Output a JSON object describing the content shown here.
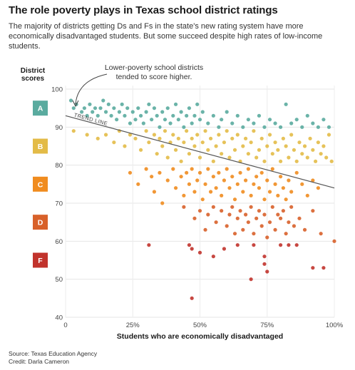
{
  "title": "The role poverty plays in Texas school district ratings",
  "subtitle": "The majority of districts getting Ds and Fs in the state's new rating system have more economically disadvantaged students. But some succeed despite high rates of low-income students.",
  "source_line": "Source: Texas Education Agency",
  "credit_line": "Credit: Darla Cameron",
  "annotation": "Lower-poverty school districts tended to score higher.",
  "trend_label": "TREND LINE",
  "grade_colors": {
    "A": "#5aab9f",
    "B": "#e3bb47",
    "C": "#f08c1f",
    "D": "#d8612a",
    "F": "#c1332c"
  },
  "chart_data": {
    "type": "scatter",
    "xlabel": "Students who are economically disadvantaged",
    "ylabel": "District scores",
    "xlim": [
      0,
      100
    ],
    "ylim": [
      40,
      100
    ],
    "x_ticks": [
      "0",
      "25%",
      "50%",
      "75%",
      "100%"
    ],
    "y_ticks": [
      "40",
      "50",
      "60",
      "70",
      "80",
      "90",
      "100"
    ],
    "grades": [
      {
        "label": "A",
        "range": [
          90,
          100
        ]
      },
      {
        "label": "B",
        "range": [
          80,
          90
        ]
      },
      {
        "label": "C",
        "range": [
          70,
          80
        ]
      },
      {
        "label": "D",
        "range": [
          60,
          70
        ]
      },
      {
        "label": "F",
        "range": [
          0,
          60
        ]
      }
    ],
    "trend_line": {
      "x": [
        0,
        100
      ],
      "y": [
        93,
        74
      ]
    },
    "points": [
      [
        2,
        97
      ],
      [
        3,
        95
      ],
      [
        4,
        96
      ],
      [
        6,
        94
      ],
      [
        7,
        95
      ],
      [
        8,
        93
      ],
      [
        9,
        96
      ],
      [
        10,
        94
      ],
      [
        11,
        95
      ],
      [
        12,
        93
      ],
      [
        13,
        95
      ],
      [
        14,
        97
      ],
      [
        15,
        94
      ],
      [
        16,
        96
      ],
      [
        17,
        93
      ],
      [
        18,
        95
      ],
      [
        19,
        92
      ],
      [
        20,
        94
      ],
      [
        21,
        96
      ],
      [
        22,
        93
      ],
      [
        23,
        95
      ],
      [
        24,
        91
      ],
      [
        25,
        94
      ],
      [
        26,
        92
      ],
      [
        27,
        95
      ],
      [
        28,
        93
      ],
      [
        29,
        91
      ],
      [
        30,
        94
      ],
      [
        31,
        96
      ],
      [
        32,
        92
      ],
      [
        33,
        95
      ],
      [
        34,
        93
      ],
      [
        35,
        90
      ],
      [
        36,
        94
      ],
      [
        37,
        92
      ],
      [
        38,
        95
      ],
      [
        39,
        91
      ],
      [
        40,
        93
      ],
      [
        41,
        96
      ],
      [
        42,
        92
      ],
      [
        43,
        94
      ],
      [
        44,
        90
      ],
      [
        45,
        93
      ],
      [
        46,
        95
      ],
      [
        47,
        91
      ],
      [
        48,
        93
      ],
      [
        49,
        96
      ],
      [
        50,
        92
      ],
      [
        51,
        94
      ],
      [
        53,
        91
      ],
      [
        55,
        93
      ],
      [
        57,
        90
      ],
      [
        58,
        92
      ],
      [
        60,
        94
      ],
      [
        62,
        91
      ],
      [
        64,
        93
      ],
      [
        66,
        90
      ],
      [
        68,
        92
      ],
      [
        70,
        91
      ],
      [
        72,
        93
      ],
      [
        74,
        90
      ],
      [
        76,
        92
      ],
      [
        78,
        91
      ],
      [
        80,
        90
      ],
      [
        82,
        96
      ],
      [
        84,
        91
      ],
      [
        86,
        92
      ],
      [
        88,
        90
      ],
      [
        90,
        93
      ],
      [
        92,
        91
      ],
      [
        94,
        90
      ],
      [
        96,
        92
      ],
      [
        98,
        90
      ],
      [
        3,
        89
      ],
      [
        8,
        88
      ],
      [
        12,
        87
      ],
      [
        15,
        88
      ],
      [
        18,
        86
      ],
      [
        20,
        89
      ],
      [
        22,
        85
      ],
      [
        24,
        88
      ],
      [
        26,
        87
      ],
      [
        28,
        84
      ],
      [
        30,
        89
      ],
      [
        31,
        86
      ],
      [
        33,
        88
      ],
      [
        34,
        83
      ],
      [
        35,
        87
      ],
      [
        36,
        85
      ],
      [
        37,
        89
      ],
      [
        38,
        82
      ],
      [
        39,
        86
      ],
      [
        40,
        88
      ],
      [
        41,
        84
      ],
      [
        42,
        87
      ],
      [
        43,
        81
      ],
      [
        44,
        86
      ],
      [
        45,
        89
      ],
      [
        46,
        83
      ],
      [
        47,
        87
      ],
      [
        48,
        85
      ],
      [
        49,
        88
      ],
      [
        50,
        82
      ],
      [
        51,
        86
      ],
      [
        52,
        89
      ],
      [
        53,
        84
      ],
      [
        54,
        87
      ],
      [
        55,
        81
      ],
      [
        56,
        85
      ],
      [
        57,
        88
      ],
      [
        58,
        83
      ],
      [
        59,
        86
      ],
      [
        60,
        89
      ],
      [
        61,
        82
      ],
      [
        62,
        87
      ],
      [
        63,
        84
      ],
      [
        64,
        88
      ],
      [
        65,
        81
      ],
      [
        66,
        85
      ],
      [
        67,
        87
      ],
      [
        68,
        83
      ],
      [
        69,
        86
      ],
      [
        70,
        89
      ],
      [
        71,
        82
      ],
      [
        72,
        84
      ],
      [
        73,
        87
      ],
      [
        74,
        81
      ],
      [
        75,
        85
      ],
      [
        76,
        88
      ],
      [
        77,
        83
      ],
      [
        78,
        86
      ],
      [
        79,
        84
      ],
      [
        80,
        81
      ],
      [
        81,
        87
      ],
      [
        82,
        85
      ],
      [
        83,
        82
      ],
      [
        84,
        88
      ],
      [
        85,
        84
      ],
      [
        86,
        81
      ],
      [
        87,
        86
      ],
      [
        88,
        83
      ],
      [
        89,
        85
      ],
      [
        90,
        82
      ],
      [
        91,
        87
      ],
      [
        92,
        84
      ],
      [
        93,
        81
      ],
      [
        94,
        86
      ],
      [
        95,
        83
      ],
      [
        96,
        85
      ],
      [
        97,
        82
      ],
      [
        98,
        88
      ],
      [
        99,
        81
      ],
      [
        24,
        78
      ],
      [
        27,
        75
      ],
      [
        30,
        79
      ],
      [
        32,
        77
      ],
      [
        33,
        73
      ],
      [
        35,
        78
      ],
      [
        36,
        70
      ],
      [
        38,
        76
      ],
      [
        40,
        79
      ],
      [
        41,
        74
      ],
      [
        43,
        77
      ],
      [
        44,
        72
      ],
      [
        45,
        78
      ],
      [
        46,
        75
      ],
      [
        47,
        79
      ],
      [
        48,
        73
      ],
      [
        49,
        76
      ],
      [
        50,
        78
      ],
      [
        51,
        71
      ],
      [
        52,
        75
      ],
      [
        53,
        79
      ],
      [
        54,
        73
      ],
      [
        55,
        77
      ],
      [
        56,
        74
      ],
      [
        57,
        78
      ],
      [
        58,
        72
      ],
      [
        59,
        76
      ],
      [
        60,
        79
      ],
      [
        61,
        74
      ],
      [
        62,
        77
      ],
      [
        63,
        71
      ],
      [
        64,
        75
      ],
      [
        65,
        78
      ],
      [
        66,
        73
      ],
      [
        67,
        76
      ],
      [
        68,
        79
      ],
      [
        69,
        72
      ],
      [
        70,
        75
      ],
      [
        71,
        77
      ],
      [
        72,
        74
      ],
      [
        73,
        78
      ],
      [
        74,
        71
      ],
      [
        75,
        76
      ],
      [
        76,
        73
      ],
      [
        77,
        79
      ],
      [
        78,
        75
      ],
      [
        79,
        72
      ],
      [
        80,
        77
      ],
      [
        81,
        74
      ],
      [
        82,
        71
      ],
      [
        83,
        76
      ],
      [
        84,
        73
      ],
      [
        86,
        78
      ],
      [
        88,
        75
      ],
      [
        90,
        72
      ],
      [
        92,
        76
      ],
      [
        94,
        74
      ],
      [
        44,
        69
      ],
      [
        48,
        66
      ],
      [
        50,
        68
      ],
      [
        52,
        63
      ],
      [
        53,
        67
      ],
      [
        55,
        69
      ],
      [
        56,
        65
      ],
      [
        58,
        68
      ],
      [
        60,
        64
      ],
      [
        61,
        67
      ],
      [
        62,
        69
      ],
      [
        63,
        62
      ],
      [
        64,
        66
      ],
      [
        65,
        68
      ],
      [
        66,
        63
      ],
      [
        67,
        67
      ],
      [
        68,
        65
      ],
      [
        69,
        69
      ],
      [
        70,
        62
      ],
      [
        71,
        66
      ],
      [
        72,
        68
      ],
      [
        73,
        64
      ],
      [
        74,
        67
      ],
      [
        75,
        61
      ],
      [
        76,
        65
      ],
      [
        77,
        69
      ],
      [
        78,
        63
      ],
      [
        79,
        67
      ],
      [
        80,
        66
      ],
      [
        81,
        68
      ],
      [
        82,
        62
      ],
      [
        83,
        65
      ],
      [
        84,
        69
      ],
      [
        85,
        64
      ],
      [
        87,
        66
      ],
      [
        89,
        63
      ],
      [
        92,
        68
      ],
      [
        95,
        62
      ],
      [
        31,
        59
      ],
      [
        46,
        59
      ],
      [
        47,
        58
      ],
      [
        50,
        57
      ],
      [
        55,
        56
      ],
      [
        59,
        58
      ],
      [
        64,
        59
      ],
      [
        70,
        59
      ],
      [
        74,
        56
      ],
      [
        74,
        54
      ],
      [
        75,
        52
      ],
      [
        69,
        50
      ],
      [
        80,
        59
      ],
      [
        83,
        59
      ],
      [
        86,
        59
      ],
      [
        92,
        53
      ],
      [
        96,
        53
      ],
      [
        100,
        60
      ],
      [
        47,
        45
      ]
    ]
  }
}
